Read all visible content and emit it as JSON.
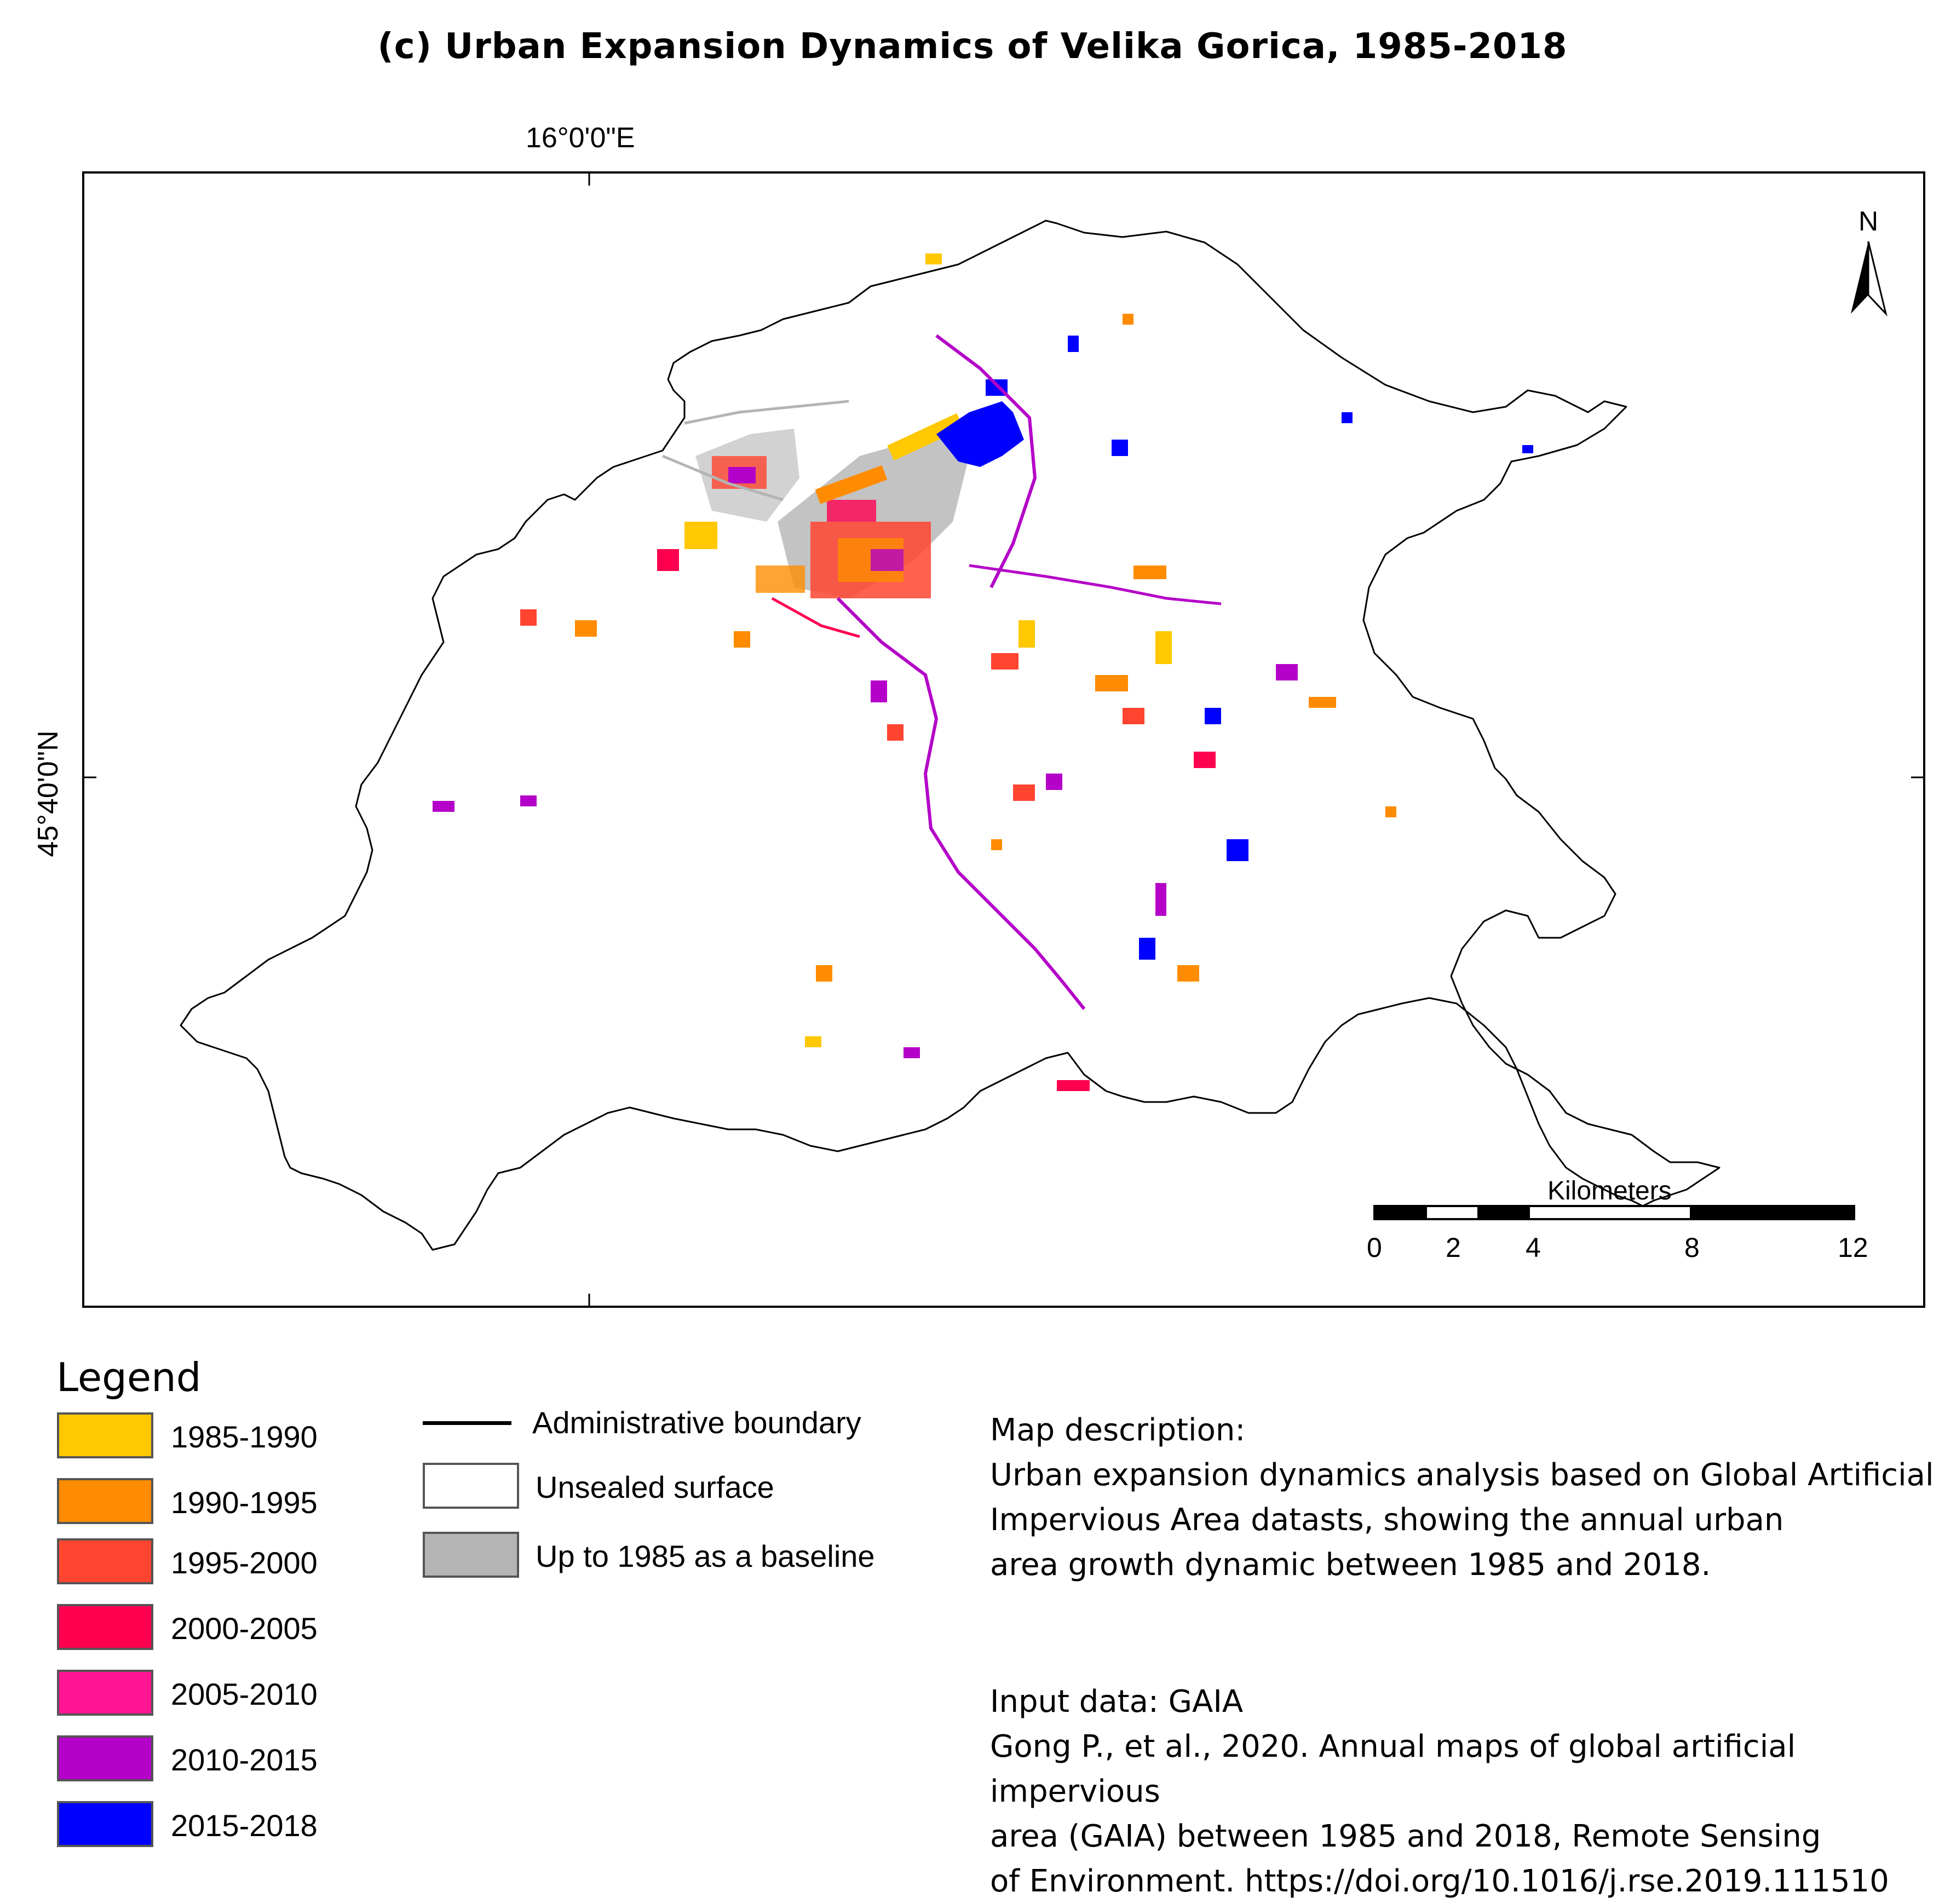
{
  "title": "(c)  Urban Expansion Dynamics of Velika Gorica, 1985-2018",
  "graticule": {
    "longitude": "16°0'0\"E",
    "latitude": "45°40'0\"N"
  },
  "north_arrow": {
    "label": "N"
  },
  "scale_bar": {
    "unit": "Kilometers",
    "ticks": [
      "0",
      "2",
      "4",
      "8",
      "12"
    ]
  },
  "legend": {
    "title": "Legend",
    "periods": [
      {
        "label": "1985-1990",
        "color": "#FFC800"
      },
      {
        "label": "1990-1995",
        "color": "#FF8C00"
      },
      {
        "label": "1995-2000",
        "color": "#FF4430"
      },
      {
        "label": "2000-2005",
        "color": "#FF0050"
      },
      {
        "label": "2005-2010",
        "color": "#FF1493"
      },
      {
        "label": "2010-2015",
        "color": "#B400C8"
      },
      {
        "label": "2015-2018",
        "color": "#0000FF"
      }
    ],
    "other": [
      {
        "label": "Administrative boundary",
        "symbol": "line",
        "color": "#000000"
      },
      {
        "label": "Unsealed surface",
        "symbol": "box",
        "color": "#FFFFFF"
      },
      {
        "label": "Up to 1985 as a baseline",
        "symbol": "box",
        "color": "#B4B4B4"
      }
    ]
  },
  "map_description": {
    "heading": "Map description:",
    "lines": [
      "Urban expansion dynamics analysis based on Global Artificial",
      "Impervious Area datasts, showing the annual urban",
      "area growth dynamic between 1985 and 2018."
    ]
  },
  "input_data": {
    "heading": "Input data: GAIA",
    "lines": [
      "Gong P., et al., 2020. Annual maps of global artificial impervious",
      "area (GAIA) between 1985 and 2018, Remote Sensing",
      "of Environment. https://doi.org/10.1016/j.rse.2019.111510"
    ]
  }
}
